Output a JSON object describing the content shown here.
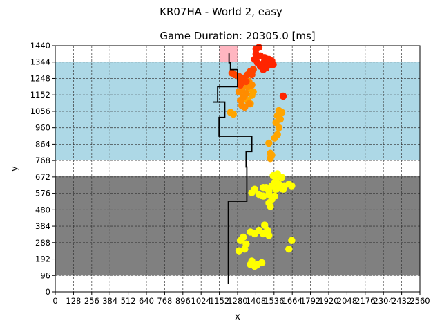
{
  "chart_data": {
    "type": "scatter",
    "suptitle": "KR07HA - World 2, easy",
    "title": "Game Duration: 20305.0 [ms]",
    "xlabel": "x",
    "ylabel": "y",
    "xlim": [
      0,
      2560
    ],
    "ylim": [
      0,
      1440
    ],
    "xticks": [
      0,
      128,
      256,
      384,
      512,
      640,
      768,
      896,
      1024,
      1152,
      1280,
      1408,
      1536,
      1664,
      1792,
      1920,
      2048,
      2176,
      2304,
      2432,
      2560
    ],
    "yticks": [
      0,
      96,
      192,
      288,
      384,
      480,
      576,
      672,
      768,
      864,
      960,
      1056,
      1152,
      1248,
      1344,
      1440
    ],
    "grid": true,
    "grid_style": "dashed",
    "regions": [
      {
        "name": "grey-zone",
        "color": "#808080",
        "x": [
          0,
          2560
        ],
        "y": [
          96,
          676
        ]
      },
      {
        "name": "blue-zone",
        "color": "#add8e6",
        "x": [
          0,
          2560
        ],
        "y": [
          770,
          1344
        ]
      },
      {
        "name": "pink-goal",
        "color": "#ffb6c1",
        "x": [
          1152,
          1280
        ],
        "y": [
          1344,
          1440
        ]
      }
    ],
    "path": {
      "color": "#000000",
      "points": [
        [
          1215,
          45
        ],
        [
          1215,
          530
        ],
        [
          1345,
          530
        ],
        [
          1345,
          730
        ],
        [
          1340,
          730
        ],
        [
          1340,
          820
        ],
        [
          1380,
          820
        ],
        [
          1380,
          910
        ],
        [
          1150,
          910
        ],
        [
          1150,
          1020
        ],
        [
          1190,
          1020
        ],
        [
          1190,
          1110
        ],
        [
          1110,
          1110
        ],
        [
          1140,
          1110
        ],
        [
          1140,
          1200
        ],
        [
          1280,
          1200
        ],
        [
          1280,
          1300
        ],
        [
          1230,
          1300
        ],
        [
          1230,
          1340
        ],
        [
          1220,
          1340
        ],
        [
          1220,
          1395
        ]
      ]
    },
    "series": [
      {
        "color": "#ffff00",
        "points": [
          [
            1660,
            300
          ],
          [
            1640,
            250
          ],
          [
            1370,
            350
          ],
          [
            1400,
            340
          ],
          [
            1430,
            360
          ],
          [
            1460,
            340
          ],
          [
            1490,
            360
          ],
          [
            1500,
            330
          ],
          [
            1470,
            390
          ],
          [
            1320,
            320
          ],
          [
            1300,
            300
          ],
          [
            1340,
            280
          ],
          [
            1330,
            250
          ],
          [
            1290,
            240
          ],
          [
            1380,
            180
          ],
          [
            1420,
            160
          ],
          [
            1450,
            170
          ],
          [
            1370,
            160
          ],
          [
            1400,
            150
          ],
          [
            1380,
            580
          ],
          [
            1400,
            600
          ],
          [
            1430,
            570
          ],
          [
            1460,
            610
          ],
          [
            1500,
            590
          ],
          [
            1520,
            620
          ],
          [
            1550,
            600
          ],
          [
            1580,
            610
          ],
          [
            1610,
            620
          ],
          [
            1640,
            630
          ],
          [
            1660,
            620
          ],
          [
            1500,
            520
          ],
          [
            1520,
            540
          ],
          [
            1540,
            560
          ],
          [
            1510,
            500
          ],
          [
            1530,
            680
          ],
          [
            1560,
            690
          ],
          [
            1550,
            650
          ],
          [
            1590,
            670
          ],
          [
            1570,
            630
          ],
          [
            1480,
            610
          ],
          [
            1460,
            560
          ],
          [
            1500,
            570
          ],
          [
            1540,
            640
          ],
          [
            1600,
            600
          ]
        ]
      },
      {
        "color": "#ffa500",
        "points": [
          [
            1510,
            780
          ],
          [
            1510,
            810
          ],
          [
            1520,
            800
          ],
          [
            1500,
            870
          ],
          [
            1540,
            900
          ],
          [
            1560,
            920
          ],
          [
            1570,
            960
          ],
          [
            1550,
            990
          ],
          [
            1580,
            1010
          ],
          [
            1560,
            1030
          ],
          [
            1590,
            1050
          ],
          [
            1570,
            1060
          ],
          [
            1230,
            1050
          ],
          [
            1250,
            1040
          ],
          [
            1370,
            1100
          ],
          [
            1350,
            1120
          ],
          [
            1380,
            1150
          ],
          [
            1390,
            1170
          ],
          [
            1360,
            1190
          ]
        ]
      },
      {
        "color": "#ff8c00",
        "points": [
          [
            1310,
            1090
          ],
          [
            1330,
            1080
          ],
          [
            1360,
            1100
          ],
          [
            1300,
            1120
          ],
          [
            1320,
            1140
          ],
          [
            1340,
            1160
          ],
          [
            1310,
            1180
          ],
          [
            1290,
            1170
          ],
          [
            1350,
            1200
          ],
          [
            1330,
            1220
          ],
          [
            1310,
            1240
          ],
          [
            1360,
            1230
          ],
          [
            1380,
            1210
          ]
        ]
      },
      {
        "color": "#ff4500",
        "points": [
          [
            1240,
            1280
          ],
          [
            1260,
            1270
          ],
          [
            1290,
            1260
          ],
          [
            1300,
            1240
          ],
          [
            1320,
            1250
          ],
          [
            1350,
            1270
          ],
          [
            1370,
            1290
          ],
          [
            1390,
            1300
          ],
          [
            1380,
            1270
          ],
          [
            1340,
            1230
          ],
          [
            1300,
            1210
          ]
        ]
      },
      {
        "color": "#ff2400",
        "points": [
          [
            1600,
            1145
          ],
          [
            1400,
            1360
          ],
          [
            1420,
            1340
          ],
          [
            1450,
            1330
          ],
          [
            1470,
            1350
          ],
          [
            1490,
            1340
          ],
          [
            1510,
            1330
          ],
          [
            1530,
            1330
          ],
          [
            1460,
            1300
          ],
          [
            1480,
            1310
          ],
          [
            1440,
            1320
          ],
          [
            1410,
            1390
          ],
          [
            1440,
            1380
          ],
          [
            1470,
            1370
          ],
          [
            1500,
            1360
          ],
          [
            1520,
            1350
          ],
          [
            1430,
            1430
          ],
          [
            1410,
            1420
          ]
        ]
      }
    ]
  }
}
